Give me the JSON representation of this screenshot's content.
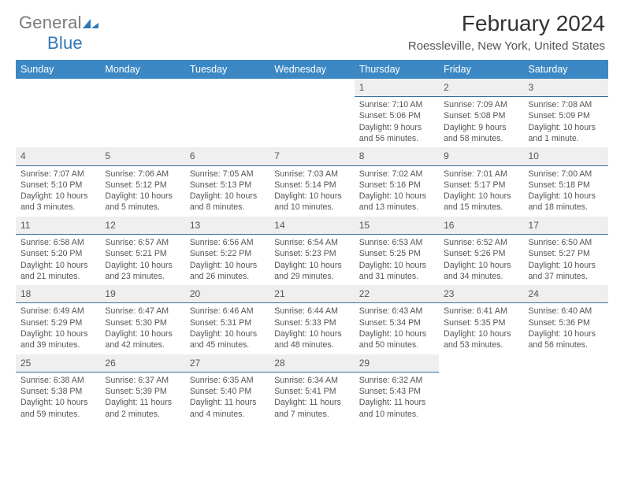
{
  "brand": {
    "word1": "General",
    "word2": "Blue"
  },
  "title": "February 2024",
  "location": "Roessleville, New York, United States",
  "colors": {
    "header_bg": "#3b88c4",
    "header_text": "#ffffff",
    "band_bg": "#efefef",
    "band_border": "#3b6f9a",
    "text": "#555555",
    "page_bg": "#ffffff"
  },
  "weekdays": [
    "Sunday",
    "Monday",
    "Tuesday",
    "Wednesday",
    "Thursday",
    "Friday",
    "Saturday"
  ],
  "weeks": [
    [
      null,
      null,
      null,
      null,
      {
        "n": "1",
        "sr": "7:10 AM",
        "ss": "5:06 PM",
        "dl": "9 hours and 56 minutes."
      },
      {
        "n": "2",
        "sr": "7:09 AM",
        "ss": "5:08 PM",
        "dl": "9 hours and 58 minutes."
      },
      {
        "n": "3",
        "sr": "7:08 AM",
        "ss": "5:09 PM",
        "dl": "10 hours and 1 minute."
      }
    ],
    [
      {
        "n": "4",
        "sr": "7:07 AM",
        "ss": "5:10 PM",
        "dl": "10 hours and 3 minutes."
      },
      {
        "n": "5",
        "sr": "7:06 AM",
        "ss": "5:12 PM",
        "dl": "10 hours and 5 minutes."
      },
      {
        "n": "6",
        "sr": "7:05 AM",
        "ss": "5:13 PM",
        "dl": "10 hours and 8 minutes."
      },
      {
        "n": "7",
        "sr": "7:03 AM",
        "ss": "5:14 PM",
        "dl": "10 hours and 10 minutes."
      },
      {
        "n": "8",
        "sr": "7:02 AM",
        "ss": "5:16 PM",
        "dl": "10 hours and 13 minutes."
      },
      {
        "n": "9",
        "sr": "7:01 AM",
        "ss": "5:17 PM",
        "dl": "10 hours and 15 minutes."
      },
      {
        "n": "10",
        "sr": "7:00 AM",
        "ss": "5:18 PM",
        "dl": "10 hours and 18 minutes."
      }
    ],
    [
      {
        "n": "11",
        "sr": "6:58 AM",
        "ss": "5:20 PM",
        "dl": "10 hours and 21 minutes."
      },
      {
        "n": "12",
        "sr": "6:57 AM",
        "ss": "5:21 PM",
        "dl": "10 hours and 23 minutes."
      },
      {
        "n": "13",
        "sr": "6:56 AM",
        "ss": "5:22 PM",
        "dl": "10 hours and 26 minutes."
      },
      {
        "n": "14",
        "sr": "6:54 AM",
        "ss": "5:23 PM",
        "dl": "10 hours and 29 minutes."
      },
      {
        "n": "15",
        "sr": "6:53 AM",
        "ss": "5:25 PM",
        "dl": "10 hours and 31 minutes."
      },
      {
        "n": "16",
        "sr": "6:52 AM",
        "ss": "5:26 PM",
        "dl": "10 hours and 34 minutes."
      },
      {
        "n": "17",
        "sr": "6:50 AM",
        "ss": "5:27 PM",
        "dl": "10 hours and 37 minutes."
      }
    ],
    [
      {
        "n": "18",
        "sr": "6:49 AM",
        "ss": "5:29 PM",
        "dl": "10 hours and 39 minutes."
      },
      {
        "n": "19",
        "sr": "6:47 AM",
        "ss": "5:30 PM",
        "dl": "10 hours and 42 minutes."
      },
      {
        "n": "20",
        "sr": "6:46 AM",
        "ss": "5:31 PM",
        "dl": "10 hours and 45 minutes."
      },
      {
        "n": "21",
        "sr": "6:44 AM",
        "ss": "5:33 PM",
        "dl": "10 hours and 48 minutes."
      },
      {
        "n": "22",
        "sr": "6:43 AM",
        "ss": "5:34 PM",
        "dl": "10 hours and 50 minutes."
      },
      {
        "n": "23",
        "sr": "6:41 AM",
        "ss": "5:35 PM",
        "dl": "10 hours and 53 minutes."
      },
      {
        "n": "24",
        "sr": "6:40 AM",
        "ss": "5:36 PM",
        "dl": "10 hours and 56 minutes."
      }
    ],
    [
      {
        "n": "25",
        "sr": "6:38 AM",
        "ss": "5:38 PM",
        "dl": "10 hours and 59 minutes."
      },
      {
        "n": "26",
        "sr": "6:37 AM",
        "ss": "5:39 PM",
        "dl": "11 hours and 2 minutes."
      },
      {
        "n": "27",
        "sr": "6:35 AM",
        "ss": "5:40 PM",
        "dl": "11 hours and 4 minutes."
      },
      {
        "n": "28",
        "sr": "6:34 AM",
        "ss": "5:41 PM",
        "dl": "11 hours and 7 minutes."
      },
      {
        "n": "29",
        "sr": "6:32 AM",
        "ss": "5:43 PM",
        "dl": "11 hours and 10 minutes."
      },
      null,
      null
    ]
  ],
  "labels": {
    "sunrise": "Sunrise: ",
    "sunset": "Sunset: ",
    "daylight": "Daylight: "
  }
}
